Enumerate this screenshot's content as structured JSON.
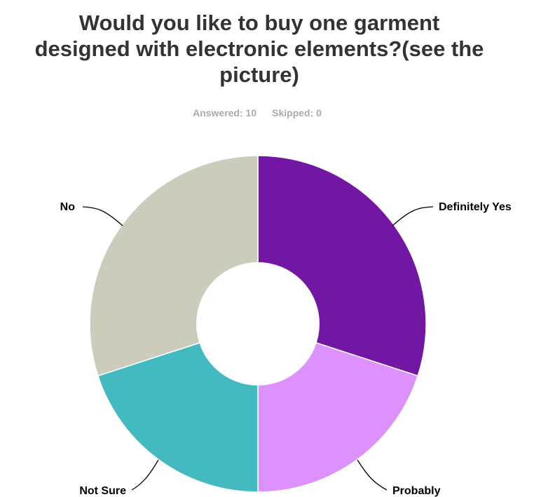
{
  "chart_data": {
    "type": "pie",
    "donut": true,
    "title_lines": [
      "Would you like to buy one garment",
      "designed with electronic elements?(see the",
      "picture)"
    ],
    "summary": {
      "answered": "Answered: 10",
      "skipped": "Skipped: 0"
    },
    "categories": [
      "Definitely Yes",
      "Probably",
      "Not Sure",
      "No"
    ],
    "values": [
      3,
      2,
      2,
      3
    ],
    "colors": [
      "#7217a3",
      "#dd91fd",
      "#43bac0",
      "#ccccbc"
    ],
    "legend": "none"
  }
}
